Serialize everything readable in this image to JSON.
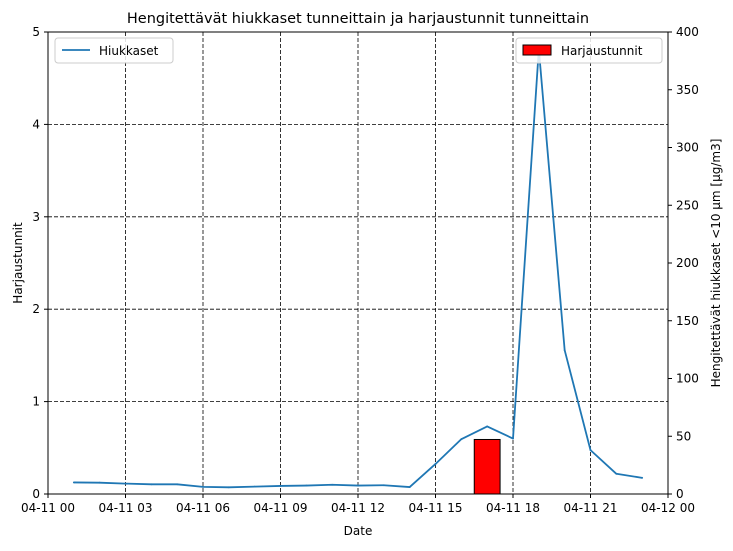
{
  "chart_data": {
    "type": "line+bar",
    "title": "Hengitettävät hiukkaset tunneittain ja harjaustunnit tunneittain",
    "xlabel": "Date",
    "ylabel_left": "Harjaustunnit",
    "ylabel_right": "Hengitettävät hiukkaset <10 µm [µg/m3]",
    "x_range_hours": [
      0,
      24
    ],
    "x_ticks": [
      {
        "h": 0,
        "label": "04-11 00"
      },
      {
        "h": 3,
        "label": "04-11 03"
      },
      {
        "h": 6,
        "label": "04-11 06"
      },
      {
        "h": 9,
        "label": "04-11 09"
      },
      {
        "h": 12,
        "label": "04-11 12"
      },
      {
        "h": 15,
        "label": "04-11 15"
      },
      {
        "h": 18,
        "label": "04-11 18"
      },
      {
        "h": 21,
        "label": "04-11 21"
      },
      {
        "h": 24,
        "label": "04-12 00"
      }
    ],
    "ylim_left": [
      0,
      5
    ],
    "y_ticks_left": [
      0,
      1,
      2,
      3,
      4,
      5
    ],
    "ylim_right": [
      0,
      400
    ],
    "y_ticks_right": [
      0,
      50,
      100,
      150,
      200,
      250,
      300,
      350,
      400
    ],
    "grid": true,
    "series": [
      {
        "name": "Hiukkaset",
        "axis": "right",
        "kind": "line",
        "color": "#1f77b4",
        "points": [
          {
            "h": 1,
            "v": 10
          },
          {
            "h": 2,
            "v": 9.8
          },
          {
            "h": 3,
            "v": 9
          },
          {
            "h": 4,
            "v": 8.4
          },
          {
            "h": 5,
            "v": 8.4
          },
          {
            "h": 6,
            "v": 6.2
          },
          {
            "h": 7,
            "v": 5.8
          },
          {
            "h": 8,
            "v": 6.4
          },
          {
            "h": 9,
            "v": 7
          },
          {
            "h": 10,
            "v": 7.3
          },
          {
            "h": 11,
            "v": 8
          },
          {
            "h": 12,
            "v": 7.3
          },
          {
            "h": 13,
            "v": 7.6
          },
          {
            "h": 14,
            "v": 6
          },
          {
            "h": 15,
            "v": 26
          },
          {
            "h": 16,
            "v": 47.5
          },
          {
            "h": 17,
            "v": 58.5
          },
          {
            "h": 18,
            "v": 48
          },
          {
            "h": 19,
            "v": 385
          },
          {
            "h": 20,
            "v": 124.5
          },
          {
            "h": 21,
            "v": 38
          },
          {
            "h": 22,
            "v": 17.5
          },
          {
            "h": 23,
            "v": 14
          }
        ]
      },
      {
        "name": "Harjaustunnit",
        "axis": "left",
        "kind": "bar",
        "color": "#ff0000",
        "bars": [
          {
            "h_start": 16.5,
            "h_end": 17.5,
            "v": 0.59
          }
        ]
      }
    ],
    "legend_left": {
      "placement": "top-left",
      "label": "Hiukkaset"
    },
    "legend_right": {
      "placement": "top-right",
      "label": "Harjaustunnit"
    }
  }
}
